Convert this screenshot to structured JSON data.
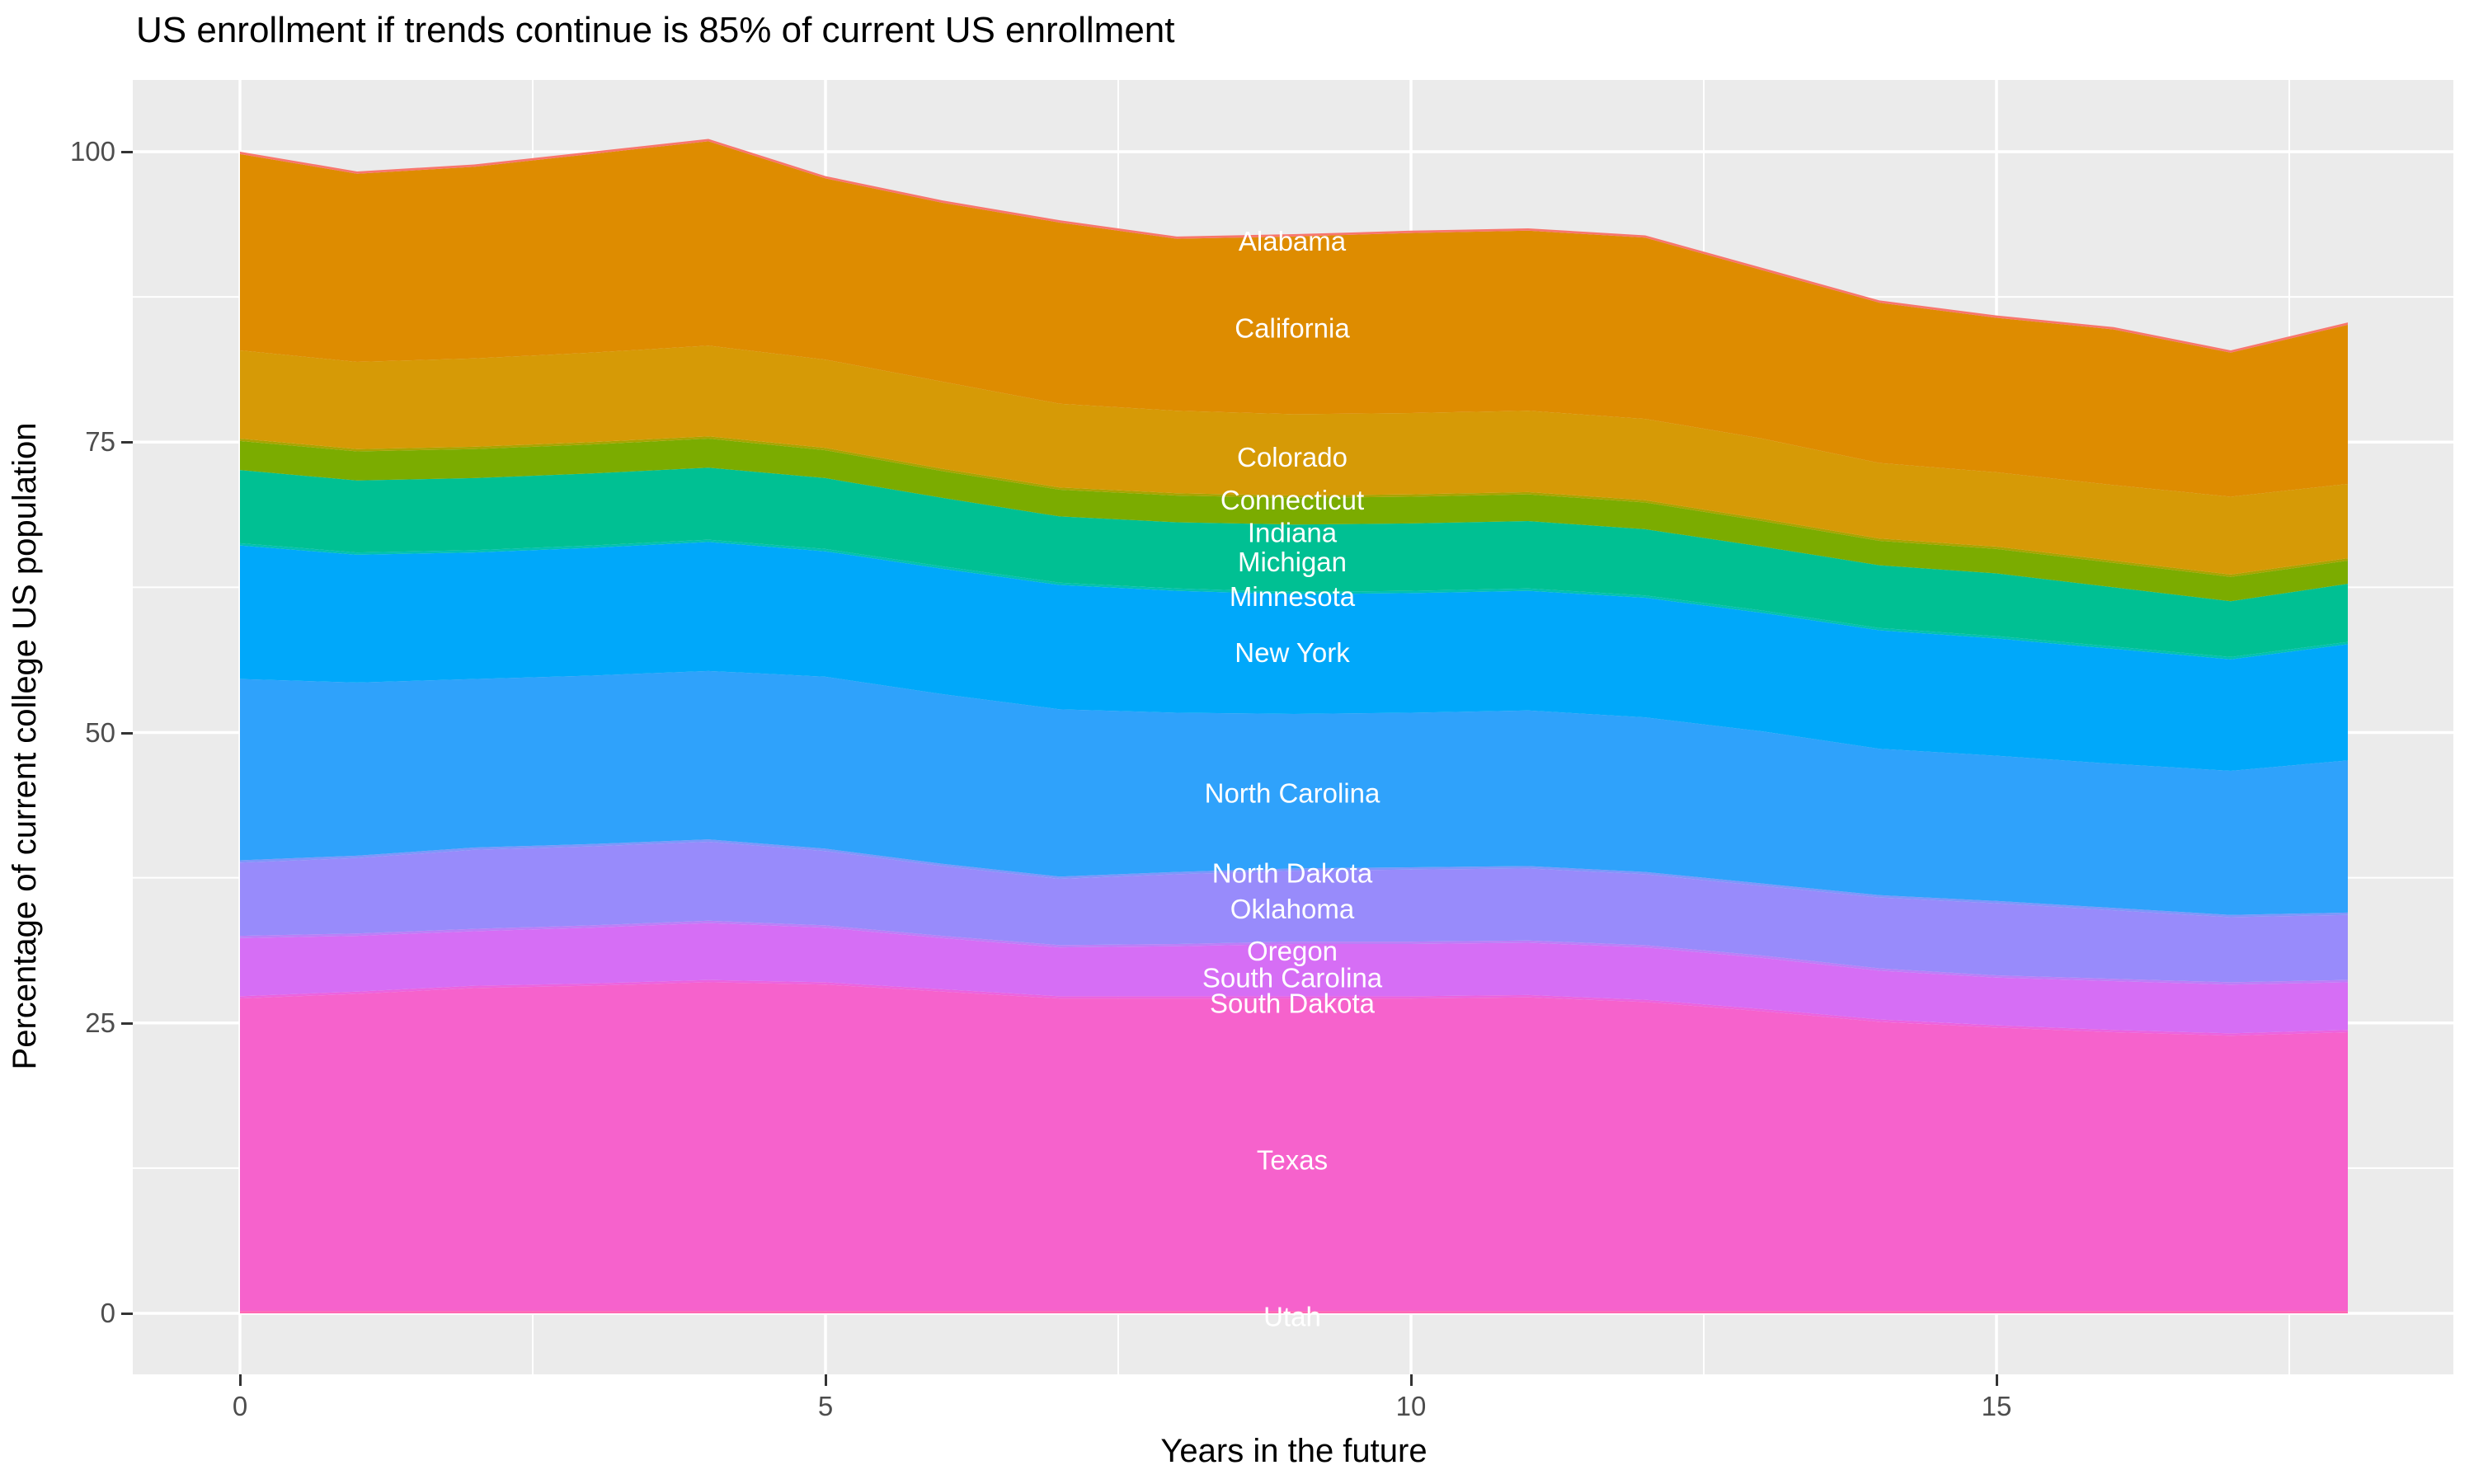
{
  "title": "US enrollment if trends continue is 85% of current US enrollment",
  "axes": {
    "x_title": "Years in the future",
    "y_title": "Percentage of current college US population",
    "y_ticks": [
      {
        "label": "100",
        "pct": 100
      },
      {
        "label": "75",
        "pct": 75
      },
      {
        "label": "50",
        "pct": 50
      },
      {
        "label": "25",
        "pct": 25
      },
      {
        "label": "0",
        "pct": 0
      }
    ],
    "x_ticks": [
      {
        "label": "0",
        "x": 0
      },
      {
        "label": "5",
        "x": 5
      },
      {
        "label": "10",
        "x": 10
      },
      {
        "label": "15",
        "x": 15
      }
    ]
  },
  "style": {
    "panel_bg": "#EBEBEB",
    "grid_color": "#FFFFFF",
    "tick_color": "#333333",
    "axis_text_color": "#4D4D4D",
    "area_label_color": "#FFFFFF"
  },
  "chart_data": {
    "type": "area",
    "stacked": true,
    "title": "US enrollment if trends continue is 85% of current US enrollment",
    "xlabel": "Years in the future",
    "ylabel": "Percentage of current college US population",
    "x": [
      0,
      1,
      2,
      3,
      4,
      5,
      6,
      7,
      8,
      9,
      10,
      11,
      12,
      13,
      14,
      15,
      16,
      17,
      18
    ],
    "xlim": [
      0,
      18
    ],
    "ylim": [
      0,
      101.1
    ],
    "grid": true,
    "legend": "none",
    "label_x": 9,
    "x_major_gridlines": [
      0,
      5,
      10,
      15
    ],
    "x_minor_gridlines": [
      2.5,
      7.5,
      12.5,
      17.5
    ],
    "y_major_gridlines": [
      0,
      25,
      50,
      75,
      100
    ],
    "y_minor_gridlines": [
      12.5,
      37.5,
      62.5,
      87.5
    ],
    "total_by_year": [
      100.0,
      98.3,
      98.9,
      100.0,
      101.1,
      97.9,
      95.8,
      94.1,
      92.7,
      92.9,
      93.2,
      93.4,
      92.8,
      90.0,
      87.2,
      85.9,
      84.9,
      82.9,
      85.3
    ],
    "series": [
      {
        "name": "Utah",
        "color": "#FF68B3",
        "label_pct": -0.3,
        "values": [
          0.2,
          0.2,
          0.2,
          0.2,
          0.2,
          0.2,
          0.2,
          0.2,
          0.2,
          0.2,
          0.2,
          0.2,
          0.2,
          0.2,
          0.2,
          0.2,
          0.2,
          0.2,
          0.2
        ]
      },
      {
        "name": "Texas",
        "color": "#F662CC",
        "label_pct": 13.2,
        "values": [
          26.9,
          27.3,
          27.8,
          28.0,
          28.3,
          28.1,
          27.5,
          26.9,
          26.9,
          26.9,
          26.9,
          27.0,
          26.6,
          25.8,
          24.9,
          24.4,
          24.0,
          23.7,
          24.0
        ]
      },
      {
        "name": "South Dakota",
        "color": "#EC63DF",
        "label_pct": 26.7,
        "values": [
          0.2,
          0.2,
          0.2,
          0.2,
          0.2,
          0.2,
          0.2,
          0.2,
          0.2,
          0.2,
          0.2,
          0.2,
          0.2,
          0.2,
          0.2,
          0.2,
          0.2,
          0.2,
          0.2
        ]
      },
      {
        "name": "South Carolina",
        "color": "#D66EF5",
        "label_pct": 28.9,
        "values": [
          5.0,
          4.8,
          4.7,
          4.8,
          4.9,
          4.7,
          4.4,
          4.2,
          4.3,
          4.5,
          4.5,
          4.5,
          4.5,
          4.4,
          4.2,
          4.1,
          4.2,
          4.2,
          4.1
        ]
      },
      {
        "name": "Oregon",
        "color": "#BC7EF8",
        "label_pct": 31.2,
        "values": [
          0.2,
          0.2,
          0.2,
          0.2,
          0.2,
          0.2,
          0.2,
          0.2,
          0.2,
          0.2,
          0.2,
          0.2,
          0.2,
          0.2,
          0.2,
          0.2,
          0.2,
          0.2,
          0.2
        ]
      },
      {
        "name": "Oklahoma",
        "color": "#988BFB",
        "label_pct": 34.8,
        "values": [
          6.3,
          6.5,
          6.8,
          6.8,
          6.8,
          6.4,
          6.0,
          5.7,
          6.0,
          6.1,
          6.2,
          6.2,
          6.1,
          6.0,
          6.1,
          6.2,
          5.9,
          5.6,
          5.6
        ]
      },
      {
        "name": "North Dakota",
        "color": "#7E96FB",
        "label_pct": 37.9,
        "values": [
          0.2,
          0.2,
          0.2,
          0.2,
          0.2,
          0.2,
          0.2,
          0.2,
          0.2,
          0.2,
          0.2,
          0.2,
          0.2,
          0.2,
          0.2,
          0.2,
          0.2,
          0.2,
          0.2
        ]
      },
      {
        "name": "North Carolina",
        "color": "#2FA2FB",
        "label_pct": 44.8,
        "values": [
          15.6,
          14.9,
          14.5,
          14.5,
          14.5,
          14.8,
          14.6,
          14.4,
          13.7,
          13.3,
          13.3,
          13.4,
          13.3,
          13.1,
          12.6,
          12.5,
          12.4,
          12.4,
          13.1
        ]
      },
      {
        "name": "New York",
        "color": "#00A8FA",
        "label_pct": 56.9,
        "values": [
          11.5,
          11.0,
          10.9,
          11.0,
          11.1,
          10.8,
          10.8,
          10.7,
          10.5,
          10.3,
          10.3,
          10.3,
          10.3,
          10.2,
          10.2,
          10.1,
          9.9,
          9.6,
          10.0
        ]
      },
      {
        "name": "Minnesota",
        "color": "#00C1B2",
        "label_pct": 61.7,
        "values": [
          0.2,
          0.2,
          0.2,
          0.2,
          0.2,
          0.2,
          0.2,
          0.2,
          0.2,
          0.2,
          0.2,
          0.2,
          0.2,
          0.2,
          0.2,
          0.2,
          0.2,
          0.2,
          0.2
        ]
      },
      {
        "name": "Michigan",
        "color": "#00C093",
        "label_pct": 64.7,
        "values": [
          6.3,
          6.2,
          6.2,
          6.2,
          6.2,
          6.1,
          5.9,
          5.7,
          5.7,
          5.8,
          5.8,
          5.8,
          5.7,
          5.5,
          5.4,
          5.4,
          5.1,
          4.8,
          5.0
        ]
      },
      {
        "name": "Indiana",
        "color": "#7BAC00",
        "label_pct": 67.2,
        "values": [
          2.5,
          2.5,
          2.5,
          2.5,
          2.5,
          2.4,
          2.3,
          2.3,
          2.3,
          2.3,
          2.3,
          2.3,
          2.3,
          2.2,
          2.1,
          2.1,
          2.1,
          2.1,
          2.0
        ]
      },
      {
        "name": "Connecticut",
        "color": "#A9A400",
        "label_pct": 70.0,
        "values": [
          0.2,
          0.2,
          0.2,
          0.2,
          0.2,
          0.2,
          0.2,
          0.2,
          0.2,
          0.2,
          0.2,
          0.2,
          0.2,
          0.2,
          0.2,
          0.2,
          0.2,
          0.2,
          0.2
        ]
      },
      {
        "name": "Colorado",
        "color": "#D69A06",
        "label_pct": 73.7,
        "values": [
          7.6,
          7.5,
          7.6,
          7.7,
          7.8,
          7.6,
          7.5,
          7.2,
          7.1,
          7.0,
          7.0,
          7.0,
          7.0,
          6.9,
          6.5,
          6.4,
          6.5,
          6.7,
          6.4
        ]
      },
      {
        "name": "California",
        "color": "#DE8C00",
        "label_pct": 84.8,
        "values": [
          16.9,
          16.2,
          16.5,
          17.1,
          17.6,
          15.6,
          15.4,
          15.6,
          14.8,
          15.3,
          15.5,
          15.5,
          15.6,
          14.5,
          13.8,
          13.3,
          13.4,
          12.4,
          13.7
        ]
      },
      {
        "name": "Alabama",
        "color": "#F8766D",
        "label_pct": 92.3,
        "values": [
          0.2,
          0.2,
          0.2,
          0.2,
          0.2,
          0.2,
          0.2,
          0.2,
          0.2,
          0.2,
          0.2,
          0.2,
          0.2,
          0.2,
          0.2,
          0.2,
          0.2,
          0.2,
          0.2
        ]
      }
    ]
  }
}
